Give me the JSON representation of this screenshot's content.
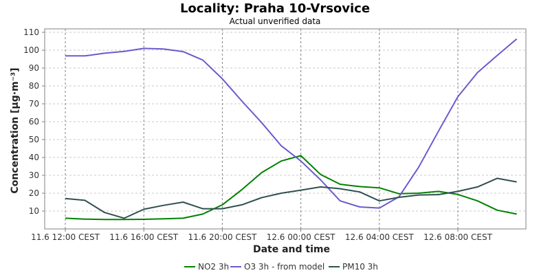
{
  "chart_data": {
    "type": "line",
    "title": "Locality: Praha 10-Vrsovice",
    "subtitle": "Actual unverified data",
    "xlabel": "Date and time",
    "ylabel": "Concentration [µg·m⁻³]",
    "x_tick_labels": [
      "11.6 12:00 CEST",
      "11.6 16:00 CEST",
      "11.6 20:00 CEST",
      "12.6 00:00 CEST",
      "12.6 04:00 CEST",
      "12.6 08:00 CEST"
    ],
    "y_ticks": [
      10,
      20,
      30,
      40,
      50,
      60,
      70,
      80,
      90,
      100,
      110
    ],
    "ylim": [
      0,
      110
    ],
    "grid": true,
    "legend_position": "bottom",
    "x": [
      "11.6 12:00",
      "11.6 13:00",
      "11.6 14:00",
      "11.6 15:00",
      "11.6 16:00",
      "11.6 17:00",
      "11.6 18:00",
      "11.6 19:00",
      "11.6 20:00",
      "11.6 21:00",
      "11.6 22:00",
      "11.6 23:00",
      "12.6 00:00",
      "12.6 01:00",
      "12.6 02:00",
      "12.6 03:00",
      "12.6 04:00",
      "12.6 05:00",
      "12.6 06:00",
      "12.6 07:00",
      "12.6 08:00",
      "12.6 09:00",
      "12.6 10:00",
      "12.6 11:00"
    ],
    "series": [
      {
        "name": "NO2 3h",
        "color": "#008000",
        "values": [
          6,
          5.5,
          5.3,
          5.3,
          5.4,
          5.7,
          6,
          8.3,
          13.5,
          22,
          31.5,
          38,
          41,
          30.5,
          25,
          23.7,
          23,
          19.7,
          20,
          21,
          19.3,
          15.7,
          10.5,
          8.3
        ]
      },
      {
        "name": "O3 3h - from model",
        "color": "#6a5acd",
        "values": [
          96.8,
          96.8,
          98.3,
          99.3,
          101,
          100.7,
          99.2,
          94.5,
          84,
          71.5,
          59.5,
          46.5,
          38,
          27.5,
          15.7,
          12.3,
          11.7,
          18,
          34.5,
          54.5,
          74,
          87.5,
          97,
          106.3
        ]
      },
      {
        "name": "PM10 3h",
        "color": "#2f4f4f",
        "values": [
          17,
          16,
          9.2,
          6,
          11,
          13.2,
          15,
          11.3,
          11.3,
          13.5,
          17.5,
          20,
          21.7,
          23.5,
          22.5,
          20.7,
          15.7,
          17.7,
          19,
          19.2,
          21,
          23.5,
          28.3,
          26.3
        ]
      }
    ]
  }
}
